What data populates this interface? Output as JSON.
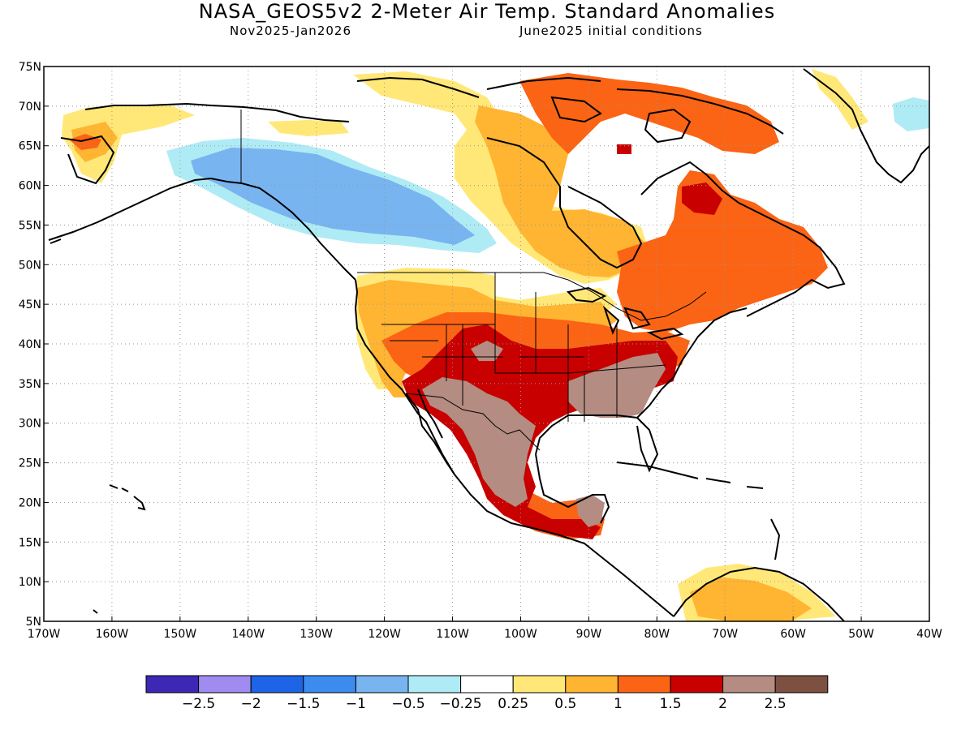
{
  "title": "NASA_GEOS5v2 2-Meter Air Temp. Standard Anomalies",
  "subtitle_left": "Nov2025-Jan2026",
  "subtitle_right": "June2025 initial conditions",
  "map": {
    "lon_range": [
      -170,
      -40
    ],
    "lat_range": [
      5,
      75
    ],
    "lon_ticks": [
      "170W",
      "160W",
      "150W",
      "140W",
      "130W",
      "120W",
      "110W",
      "100W",
      "90W",
      "80W",
      "70W",
      "60W",
      "50W",
      "40W"
    ],
    "lat_ticks": [
      "75N",
      "70N",
      "65N",
      "60N",
      "55N",
      "50N",
      "45N",
      "40N",
      "35N",
      "30N",
      "25N",
      "20N",
      "15N",
      "10N",
      "5N"
    ],
    "grid": true
  },
  "colorbar": {
    "colors": [
      "#3c28b4",
      "#a08cf0",
      "#1e64e6",
      "#3c8cf0",
      "#78b4f0",
      "#afebf5",
      "#ffffff",
      "#ffe878",
      "#ffb432",
      "#fa6414",
      "#c80000",
      "#b48c82",
      "#7d5041"
    ],
    "labels": [
      "-2.5",
      "-2",
      "-1.5",
      "-1",
      "-0.5",
      "-0.25",
      "0.25",
      "0.5",
      "1",
      "1.5",
      "2",
      "2.5"
    ]
  }
}
